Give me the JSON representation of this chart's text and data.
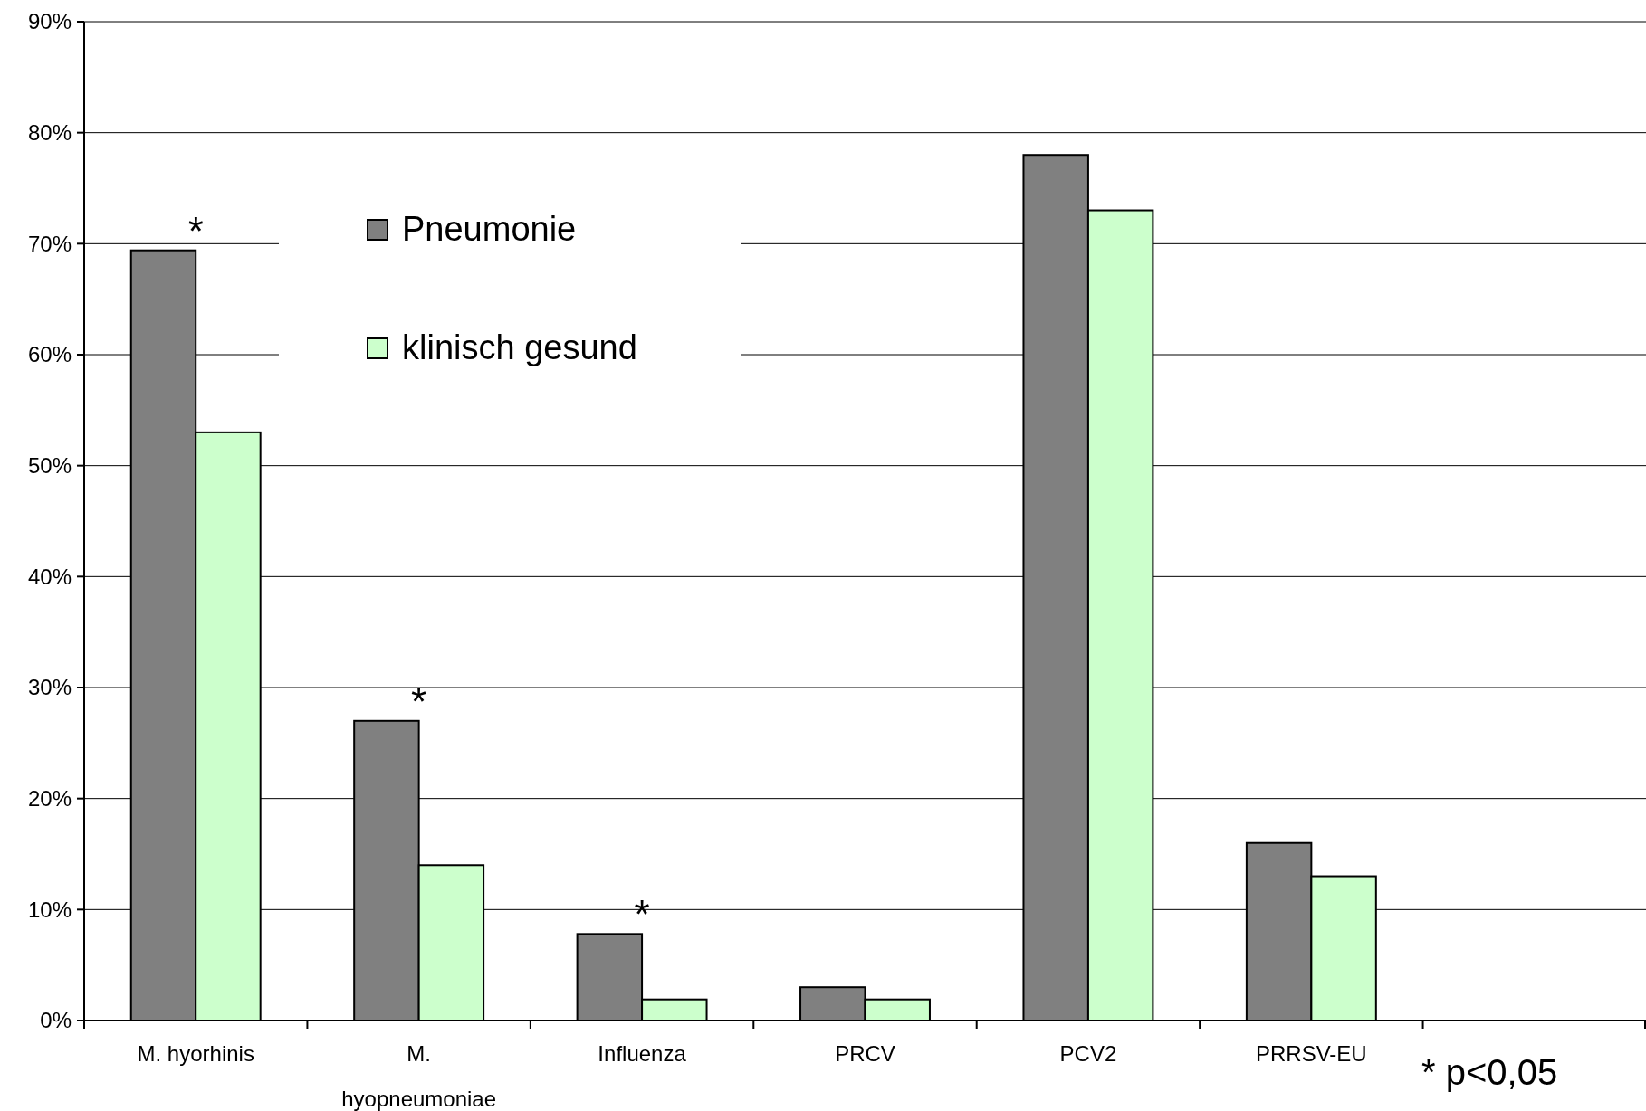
{
  "chart_data": {
    "type": "bar",
    "categories": [
      "M. hyorhinis",
      "M. hyopneumoniae",
      "Influenza",
      "PRCV",
      "PCV2",
      "PRRSV-EU",
      null
    ],
    "series": [
      {
        "name": "Pneumonie",
        "color": "#808080",
        "values": [
          69.4,
          27,
          7.8,
          3,
          78,
          16,
          null
        ]
      },
      {
        "name": "klinisch gesund",
        "color": "#ccffcc",
        "values": [
          53,
          14,
          1.9,
          1.9,
          73,
          13,
          null
        ]
      }
    ],
    "ylim": [
      0,
      90
    ],
    "yticks": [
      {
        "value": 0,
        "label": "0%"
      },
      {
        "value": 10,
        "label": "10%"
      },
      {
        "value": 20,
        "label": "20%"
      },
      {
        "value": 30,
        "label": "30%"
      },
      {
        "value": 40,
        "label": "40%"
      },
      {
        "value": 50,
        "label": "50%"
      },
      {
        "value": 60,
        "label": "60%"
      },
      {
        "value": 70,
        "label": "70%"
      },
      {
        "value": 80,
        "label": "80%"
      },
      {
        "value": 90,
        "label": "90%"
      }
    ],
    "grid": "y",
    "legend": "top left",
    "annotations": [
      "*",
      "*",
      "*",
      "* p<0,05"
    ]
  }
}
